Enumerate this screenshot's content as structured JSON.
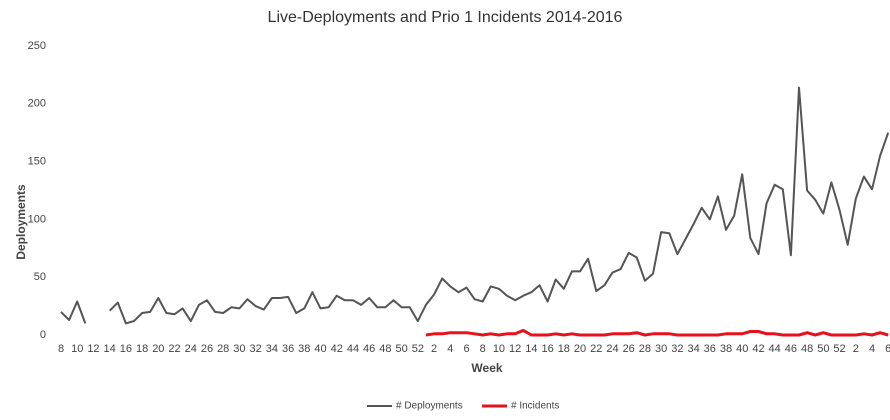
{
  "chart_data": {
    "type": "line",
    "title": "Live-Deployments and Prio 1 Incidents 2014-2016",
    "x_label": "Week",
    "y_label": "Deployments",
    "categories": [
      8,
      null,
      10,
      null,
      12,
      null,
      14,
      null,
      16,
      null,
      18,
      null,
      20,
      null,
      22,
      null,
      24,
      null,
      26,
      null,
      28,
      null,
      30,
      null,
      32,
      null,
      34,
      null,
      36,
      null,
      38,
      null,
      40,
      null,
      42,
      null,
      44,
      null,
      46,
      null,
      48,
      null,
      50,
      null,
      52,
      null,
      2,
      null,
      4,
      null,
      6,
      null,
      8,
      null,
      10,
      null,
      12,
      null,
      14,
      null,
      16,
      null,
      18,
      null,
      20,
      null,
      22,
      null,
      24,
      null,
      26,
      null,
      28,
      null,
      30,
      null,
      32,
      null,
      34,
      null,
      36,
      null,
      38,
      null,
      40,
      null,
      42,
      null,
      44,
      null,
      46,
      null,
      48,
      null,
      50,
      null,
      52,
      null,
      2,
      null,
      4,
      null,
      6
    ],
    "series": [
      {
        "name": "# Deployments",
        "color": "#555555",
        "values": [
          20,
          13,
          29,
          10,
          null,
          null,
          21,
          28,
          10,
          12,
          19,
          20,
          32,
          19,
          18,
          23,
          12,
          26,
          30,
          20,
          19,
          24,
          23,
          31,
          25,
          22,
          32,
          32,
          33,
          19,
          23,
          37,
          23,
          24,
          34,
          30,
          30,
          26,
          32,
          24,
          24,
          30,
          24,
          24,
          12,
          26,
          35,
          49,
          42,
          37,
          41,
          31,
          29,
          42,
          40,
          34,
          30,
          34,
          37,
          43,
          29,
          48,
          40,
          55,
          55,
          66,
          38,
          43,
          54,
          57,
          71,
          67,
          47,
          53,
          89,
          88,
          70,
          83,
          96,
          110,
          100,
          120,
          91,
          103,
          139,
          84,
          70,
          114,
          130,
          126,
          69,
          214,
          125,
          117,
          105,
          132,
          108,
          78,
          118,
          137,
          126,
          155,
          175
        ]
      },
      {
        "name": "# Incidents",
        "color": "#e8101a",
        "values": [
          null,
          null,
          null,
          null,
          null,
          null,
          null,
          null,
          null,
          null,
          null,
          null,
          null,
          null,
          null,
          null,
          null,
          null,
          null,
          null,
          null,
          null,
          null,
          null,
          null,
          null,
          null,
          null,
          null,
          null,
          null,
          null,
          null,
          null,
          null,
          null,
          null,
          null,
          null,
          null,
          null,
          null,
          null,
          null,
          null,
          0,
          1,
          1,
          2,
          2,
          2,
          1,
          0,
          1,
          0,
          1,
          1,
          4,
          0,
          0,
          0,
          1,
          0,
          1,
          0,
          0,
          0,
          0,
          1,
          1,
          1,
          2,
          0,
          1,
          1,
          1,
          0,
          0,
          0,
          0,
          0,
          0,
          1,
          1,
          1,
          3,
          3,
          1,
          1,
          0,
          0,
          0,
          2,
          0,
          2,
          0,
          0,
          0,
          0,
          1,
          0,
          2,
          0
        ]
      }
    ],
    "ylim": [
      0,
      250
    ],
    "yticks": [
      0,
      50,
      100,
      150,
      200,
      250
    ],
    "grid": false
  }
}
